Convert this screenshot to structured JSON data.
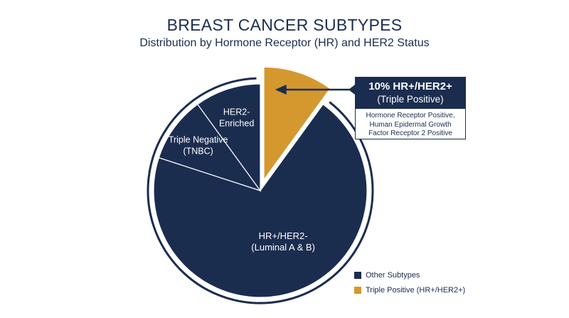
{
  "title": "BREAST CANCER SUBTYPES",
  "subtitle": "Distribution by Hormone Receptor (HR) and HER2 Status",
  "colors": {
    "navy": "#1b2d4f",
    "gold": "#d4982f",
    "white": "#ffffff"
  },
  "callout": {
    "percent": "10% HR+/HER2+",
    "sub": "(Triple Positive)",
    "description": [
      "Hormone Receptor Positive,",
      "Human Epidermal Growth",
      "Factor Receptor 2 Positive"
    ]
  },
  "legend": [
    {
      "label": "Other Subtypes",
      "color": "#1b2d4f"
    },
    {
      "label": "Triple Positive (HR+/HER2+)",
      "color": "#d4982f"
    }
  ],
  "chart_data": {
    "type": "pie",
    "slices": [
      {
        "label": "HR+/HER2+",
        "value": 10,
        "color": "#d4982f",
        "exploded": true
      },
      {
        "label": "HR+/HER2- (Luminal A & B)",
        "lines": [
          "HR+/HER2-",
          "(Luminal A & B)"
        ],
        "value": 70,
        "color": "#1b2d4f"
      },
      {
        "label": "Triple Negative (TNBC)",
        "lines": [
          "Triple Negative",
          "(TNBC)"
        ],
        "value": 10,
        "color": "#1b2d4f"
      },
      {
        "label": "HER2-Enriched",
        "lines": [
          "HER2-",
          "Enriched"
        ],
        "value": 10,
        "color": "#1b2d4f"
      }
    ],
    "legend_position": "bottom-right"
  }
}
